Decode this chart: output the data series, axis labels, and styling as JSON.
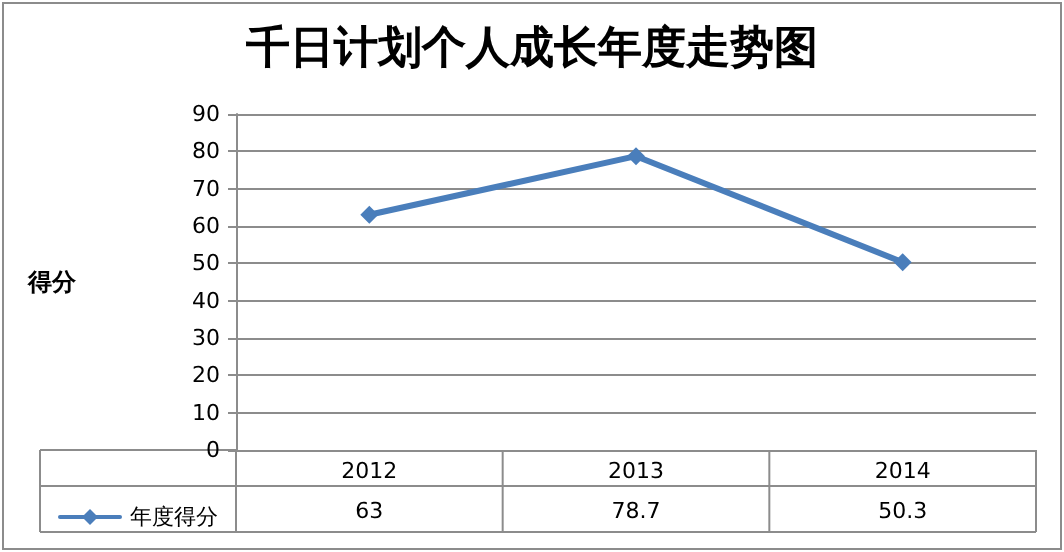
{
  "chart_data": {
    "type": "line",
    "title": "千日计划个人成长年度走势图",
    "ylabel": "得分",
    "categories": [
      "2012",
      "2013",
      "2014"
    ],
    "series": [
      {
        "name": "年度得分",
        "color": "#4a7ebb",
        "values": [
          63,
          78.7,
          50.3
        ]
      }
    ],
    "ylim": [
      0,
      90
    ],
    "yticks": [
      0,
      10,
      20,
      30,
      40,
      50,
      60,
      70,
      80,
      90
    ],
    "grid": "y",
    "legend": "bottom left",
    "marker": "diamond",
    "line_style": "solid",
    "data_labels": true
  }
}
